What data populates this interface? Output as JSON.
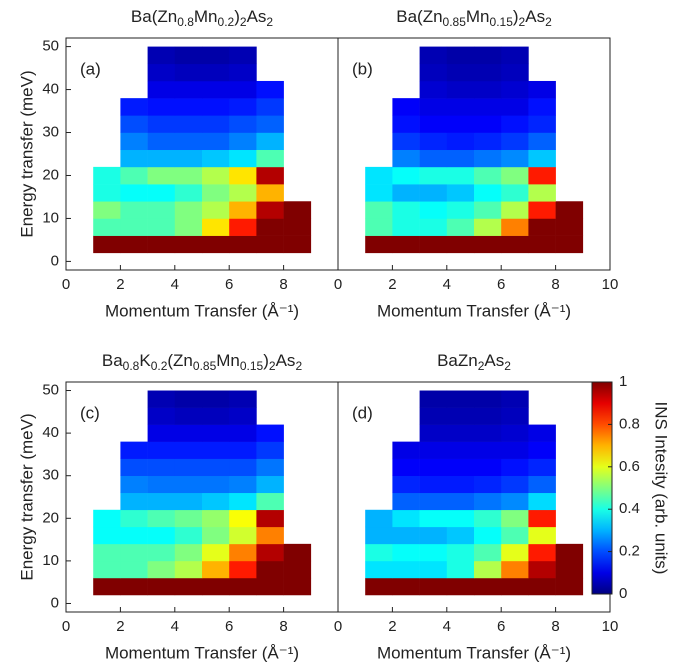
{
  "chart_data": [
    {
      "type": "heatmap",
      "title": "Ba(Zn0.8Mn0.2)2As2",
      "panel_label": "(a)",
      "xlabel": "Momentum Transfer (Å⁻¹)",
      "ylabel": "Energy transfer (meV)",
      "xlim": [
        0,
        10
      ],
      "xticks": [
        0,
        2,
        4,
        6,
        8
      ],
      "ylim": [
        -2,
        52
      ],
      "yticks": [
        0,
        10,
        20,
        30,
        40,
        50
      ],
      "colormap": "jet",
      "zlim": [
        0,
        1
      ],
      "x_edges": [
        1,
        2,
        3,
        4,
        5,
        6,
        7,
        8,
        9
      ],
      "y_edges": [
        2,
        6,
        10,
        14,
        18,
        22,
        26,
        30,
        34,
        38,
        42,
        46,
        50
      ],
      "z": [
        [
          1,
          1,
          1,
          1,
          1,
          1,
          1,
          1
        ],
        [
          0.45,
          0.45,
          0.45,
          0.5,
          0.65,
          0.85,
          1,
          1
        ],
        [
          0.5,
          0.45,
          0.45,
          0.5,
          0.55,
          0.7,
          0.95,
          1
        ],
        [
          0.4,
          0.38,
          0.38,
          0.42,
          0.5,
          0.55,
          0.7,
          null
        ],
        [
          0.4,
          0.45,
          0.5,
          0.5,
          0.55,
          0.65,
          0.95,
          null
        ],
        [
          null,
          0.3,
          0.3,
          0.3,
          0.32,
          0.35,
          0.45,
          null
        ],
        [
          null,
          0.25,
          0.22,
          0.22,
          0.22,
          0.25,
          0.3,
          null
        ],
        [
          null,
          0.2,
          0.18,
          0.18,
          0.18,
          0.2,
          0.22,
          null
        ],
        [
          null,
          0.15,
          0.14,
          0.14,
          0.14,
          0.15,
          0.18,
          null
        ],
        [
          null,
          null,
          0.1,
          0.1,
          0.1,
          0.1,
          0.14,
          null
        ],
        [
          null,
          null,
          0.07,
          0.06,
          0.06,
          0.07,
          null,
          null
        ],
        [
          null,
          null,
          0.05,
          0.04,
          0.04,
          0.05,
          null,
          null
        ]
      ]
    },
    {
      "type": "heatmap",
      "title": "Ba(Zn0.85Mn0.15)2As2",
      "panel_label": "(b)",
      "xlabel": "Momentum Transfer (Å⁻¹)",
      "xlim": [
        0,
        10
      ],
      "xticks": [
        0,
        2,
        4,
        6,
        8,
        10
      ],
      "ylim": [
        -2,
        52
      ],
      "colormap": "jet",
      "zlim": [
        0,
        1
      ],
      "x_edges": [
        1,
        2,
        3,
        4,
        5,
        6,
        7,
        8,
        9
      ],
      "y_edges": [
        2,
        6,
        10,
        14,
        18,
        22,
        26,
        30,
        34,
        38,
        42,
        46,
        50
      ],
      "z": [
        [
          1,
          1,
          1,
          1,
          1,
          1,
          1,
          1
        ],
        [
          0.45,
          0.4,
          0.4,
          0.45,
          0.55,
          0.75,
          1,
          1
        ],
        [
          0.45,
          0.4,
          0.38,
          0.4,
          0.45,
          0.55,
          0.85,
          1
        ],
        [
          0.35,
          0.3,
          0.3,
          0.32,
          0.38,
          0.42,
          0.55,
          null
        ],
        [
          0.35,
          0.38,
          0.4,
          0.4,
          0.45,
          0.5,
          0.85,
          null
        ],
        [
          null,
          0.25,
          0.22,
          0.22,
          0.24,
          0.26,
          0.32,
          null
        ],
        [
          null,
          0.18,
          0.16,
          0.15,
          0.16,
          0.18,
          0.22,
          null
        ],
        [
          null,
          0.14,
          0.12,
          0.12,
          0.12,
          0.14,
          0.16,
          null
        ],
        [
          null,
          0.12,
          0.1,
          0.1,
          0.1,
          0.1,
          0.14,
          null
        ],
        [
          null,
          null,
          0.08,
          0.07,
          0.07,
          0.08,
          0.1,
          null
        ],
        [
          null,
          null,
          0.06,
          0.05,
          0.05,
          0.06,
          null,
          null
        ],
        [
          null,
          null,
          0.05,
          0.04,
          0.04,
          0.05,
          null,
          null
        ]
      ]
    },
    {
      "type": "heatmap",
      "title": "Ba0.8K0.2(Zn0.85Mn0.15)2As2",
      "panel_label": "(c)",
      "xlabel": "Momentum Transfer (Å⁻¹)",
      "ylabel": "Energy transfer (meV)",
      "xlim": [
        0,
        10
      ],
      "xticks": [
        0,
        2,
        4,
        6,
        8
      ],
      "ylim": [
        -2,
        52
      ],
      "yticks": [
        0,
        10,
        20,
        30,
        40,
        50
      ],
      "colormap": "jet",
      "zlim": [
        0,
        1
      ],
      "x_edges": [
        1,
        2,
        3,
        4,
        5,
        6,
        7,
        8,
        9
      ],
      "y_edges": [
        2,
        6,
        10,
        14,
        18,
        22,
        26,
        30,
        34,
        38,
        42,
        46,
        50
      ],
      "z": [
        [
          1,
          1,
          1,
          1,
          1,
          1,
          1,
          1
        ],
        [
          0.45,
          0.45,
          0.5,
          0.55,
          0.7,
          0.85,
          1,
          1
        ],
        [
          0.45,
          0.45,
          0.45,
          0.5,
          0.6,
          0.75,
          0.95,
          1
        ],
        [
          0.38,
          0.38,
          0.38,
          0.42,
          0.5,
          0.58,
          0.75,
          null
        ],
        [
          0.38,
          0.42,
          0.45,
          0.48,
          0.52,
          0.62,
          0.95,
          null
        ],
        [
          null,
          0.3,
          0.3,
          0.3,
          0.32,
          0.35,
          0.45,
          null
        ],
        [
          null,
          0.25,
          0.24,
          0.24,
          0.24,
          0.25,
          0.3,
          null
        ],
        [
          null,
          0.2,
          0.2,
          0.2,
          0.2,
          0.2,
          0.24,
          null
        ],
        [
          null,
          0.15,
          0.15,
          0.15,
          0.15,
          0.15,
          0.18,
          null
        ],
        [
          null,
          null,
          0.1,
          0.1,
          0.1,
          0.1,
          0.14,
          null
        ],
        [
          null,
          null,
          0.07,
          0.06,
          0.06,
          0.07,
          null,
          null
        ],
        [
          null,
          null,
          0.05,
          0.04,
          0.04,
          0.05,
          null,
          null
        ]
      ]
    },
    {
      "type": "heatmap",
      "title": "BaZn2As2",
      "panel_label": "(d)",
      "xlabel": "Momentum Transfer (Å⁻¹)",
      "xlim": [
        0,
        10
      ],
      "xticks": [
        0,
        2,
        4,
        6,
        8,
        10
      ],
      "ylim": [
        -2,
        52
      ],
      "colormap": "jet",
      "zlim": [
        0,
        1
      ],
      "x_edges": [
        1,
        2,
        3,
        4,
        5,
        6,
        7,
        8,
        9
      ],
      "y_edges": [
        2,
        6,
        10,
        14,
        18,
        22,
        26,
        30,
        34,
        38,
        42,
        46,
        50
      ],
      "z": [
        [
          1,
          1,
          1,
          1,
          1,
          1,
          1,
          1
        ],
        [
          0.35,
          0.35,
          0.35,
          0.4,
          0.55,
          0.75,
          0.95,
          1
        ],
        [
          0.4,
          0.38,
          0.38,
          0.4,
          0.45,
          0.6,
          0.85,
          1
        ],
        [
          0.3,
          0.3,
          0.3,
          0.32,
          0.38,
          0.45,
          0.6,
          null
        ],
        [
          0.3,
          0.35,
          0.38,
          0.38,
          0.42,
          0.5,
          0.85,
          null
        ],
        [
          null,
          0.22,
          0.22,
          0.22,
          0.24,
          0.26,
          0.34,
          null
        ],
        [
          null,
          0.16,
          0.15,
          0.15,
          0.16,
          0.18,
          0.22,
          null
        ],
        [
          null,
          0.12,
          0.12,
          0.12,
          0.12,
          0.14,
          0.16,
          null
        ],
        [
          null,
          0.1,
          0.1,
          0.1,
          0.1,
          0.1,
          0.12,
          null
        ],
        [
          null,
          null,
          0.07,
          0.07,
          0.07,
          0.08,
          0.1,
          null
        ],
        [
          null,
          null,
          0.05,
          0.05,
          0.05,
          0.06,
          null,
          null
        ],
        [
          null,
          null,
          0.04,
          0.04,
          0.04,
          0.05,
          null,
          null
        ]
      ],
      "colorbar": {
        "label": "INS Intesity (arb. units)",
        "lim": [
          0,
          1
        ],
        "ticks": [
          0,
          0.2,
          0.4,
          0.6,
          0.8,
          1
        ]
      }
    }
  ]
}
